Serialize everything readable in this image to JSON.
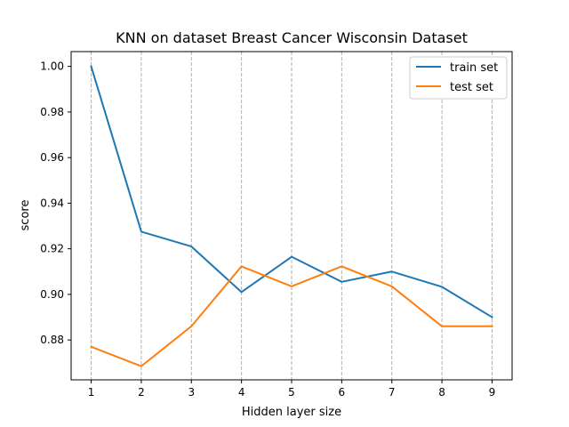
{
  "chart_data": {
    "type": "line",
    "title": "KNN on dataset Breast Cancer Wisconsin Dataset",
    "xlabel": "Hidden layer size",
    "ylabel": "score",
    "x": [
      1,
      2,
      3,
      4,
      5,
      6,
      7,
      8,
      9
    ],
    "xticks": [
      "1",
      "2",
      "3",
      "4",
      "5",
      "6",
      "7",
      "8",
      "9"
    ],
    "yticks": [
      "0.88",
      "0.90",
      "0.92",
      "0.94",
      "0.96",
      "0.98",
      "1.00"
    ],
    "ylim": [
      0.8625,
      1.0065
    ],
    "xlim": [
      0.6,
      9.4
    ],
    "grid": "vertical-dashed",
    "legend_position": "top-right",
    "series": [
      {
        "name": "train set",
        "color": "#1f77b4",
        "values": [
          1.0,
          0.9275,
          0.921,
          0.901,
          0.9165,
          0.9055,
          0.91,
          0.9033,
          0.89
        ]
      },
      {
        "name": "test set",
        "color": "#ff7f0e",
        "values": [
          0.877,
          0.8685,
          0.886,
          0.9123,
          0.9035,
          0.9123,
          0.9035,
          0.886,
          0.886
        ]
      }
    ]
  }
}
